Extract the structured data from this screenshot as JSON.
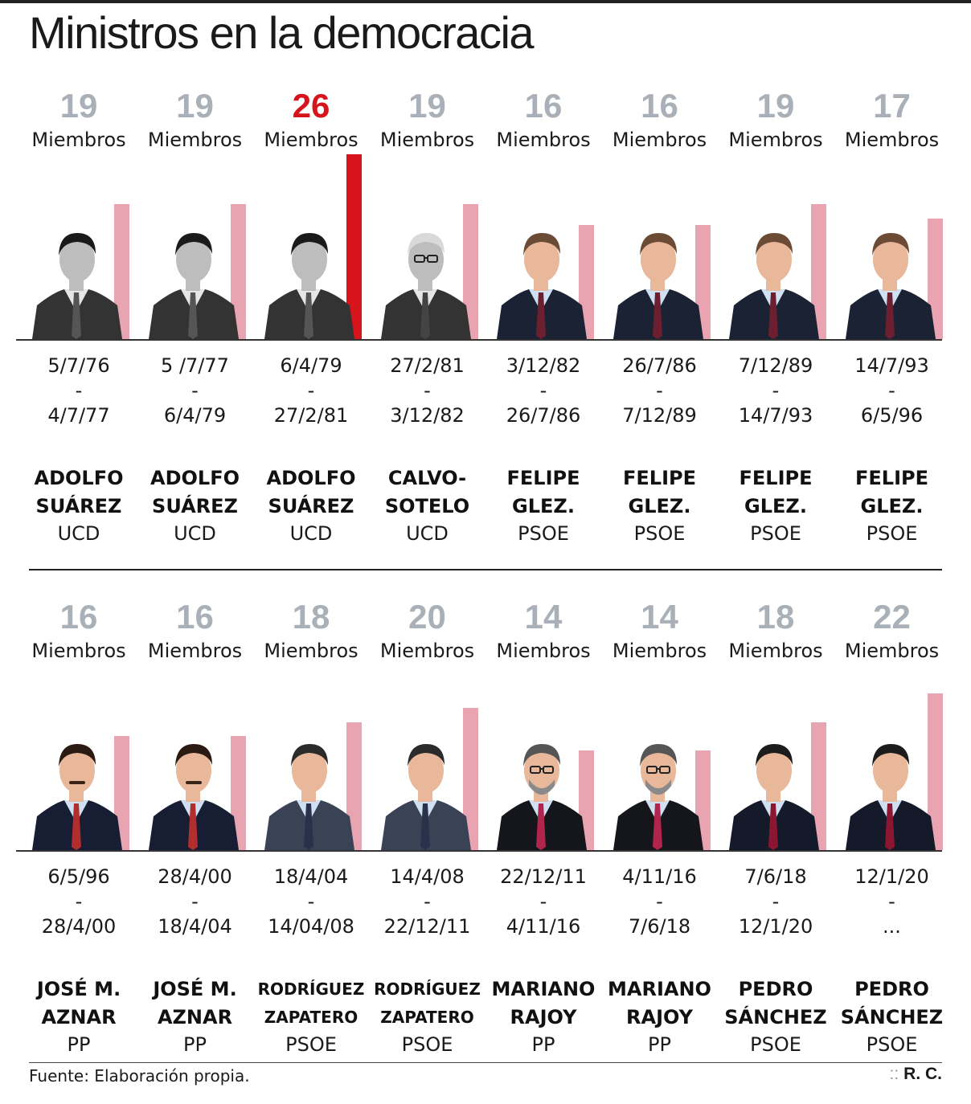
{
  "title": "Ministros en la democracia",
  "members_label": "Miembros",
  "source": "Fuente: Elaboración propia.",
  "credit": "R. C.",
  "colors": {
    "bar": "#e8a4b1",
    "bar_max": "#d7141c",
    "number": "#a9b0b8",
    "number_max": "#d7141c"
  },
  "chart_data": {
    "type": "bar",
    "categories": [
      "ADOLFO SUÁREZ",
      "ADOLFO SUÁREZ",
      "ADOLFO SUÁREZ",
      "CALVO-SOTELO",
      "FELIPE GLEZ.",
      "FELIPE GLEZ.",
      "FELIPE GLEZ.",
      "FELIPE GLEZ.",
      "JOSÉ M. AZNAR",
      "JOSÉ M. AZNAR",
      "RODRÍGUEZ ZAPATERO",
      "RODRÍGUEZ ZAPATERO",
      "MARIANO RAJOY",
      "MARIANO RAJOY",
      "PEDRO SÁNCHEZ",
      "PEDRO SÁNCHEZ"
    ],
    "values": [
      19,
      19,
      26,
      19,
      16,
      16,
      19,
      17,
      16,
      16,
      18,
      20,
      14,
      14,
      18,
      22
    ],
    "highlight_max": 26,
    "ylim": [
      0,
      26
    ],
    "ylabel": "Miembros",
    "grid": false,
    "governments": [
      {
        "members": 19,
        "start": "5/7/76",
        "sep": "-",
        "end": "4/7/77",
        "name1": "ADOLFO",
        "name2": "SUÁREZ",
        "party": "UCD",
        "portrait": "suarez-photo"
      },
      {
        "members": 19,
        "start": "5 /7/77",
        "sep": "-",
        "end": "6/4/79",
        "name1": "ADOLFO",
        "name2": "SUÁREZ",
        "party": "UCD",
        "portrait": "suarez-photo"
      },
      {
        "members": 26,
        "start": "6/4/79",
        "sep": "-",
        "end": "27/2/81",
        "name1": "ADOLFO",
        "name2": "SUÁREZ",
        "party": "UCD",
        "portrait": "suarez-photo"
      },
      {
        "members": 19,
        "start": "27/2/81",
        "sep": "-",
        "end": "3/12/82",
        "name1": "CALVO-",
        "name2": "SOTELO",
        "party": "UCD",
        "portrait": "calvo-sotelo-photo"
      },
      {
        "members": 16,
        "start": "3/12/82",
        "sep": "-",
        "end": "26/7/86",
        "name1": "FELIPE",
        "name2": "GLEZ.",
        "party": "PSOE",
        "portrait": "felipe-gonzalez-photo"
      },
      {
        "members": 16,
        "start": "26/7/86",
        "sep": "-",
        "end": "7/12/89",
        "name1": "FELIPE",
        "name2": "GLEZ.",
        "party": "PSOE",
        "portrait": "felipe-gonzalez-photo"
      },
      {
        "members": 19,
        "start": "7/12/89",
        "sep": "-",
        "end": "14/7/93",
        "name1": "FELIPE",
        "name2": "GLEZ.",
        "party": "PSOE",
        "portrait": "felipe-gonzalez-photo"
      },
      {
        "members": 17,
        "start": "14/7/93",
        "sep": "-",
        "end": "6/5/96",
        "name1": "FELIPE",
        "name2": "GLEZ.",
        "party": "PSOE",
        "portrait": "felipe-gonzalez-photo"
      },
      {
        "members": 16,
        "start": "6/5/96",
        "sep": "-",
        "end": "28/4/00",
        "name1": "JOSÉ M.",
        "name2": "AZNAR",
        "party": "PP",
        "portrait": "aznar-photo"
      },
      {
        "members": 16,
        "start": "28/4/00",
        "sep": "-",
        "end": "18/4/04",
        "name1": "JOSÉ M.",
        "name2": "AZNAR",
        "party": "PP",
        "portrait": "aznar-photo"
      },
      {
        "members": 18,
        "start": "18/4/04",
        "sep": "-",
        "end": "14/04/08",
        "name1": "RODRÍGUEZ",
        "name2": "ZAPATERO",
        "party": "PSOE",
        "portrait": "zapatero-photo"
      },
      {
        "members": 20,
        "start": "14/4/08",
        "sep": "-",
        "end": "22/12/11",
        "name1": "RODRÍGUEZ",
        "name2": "ZAPATERO",
        "party": "PSOE",
        "portrait": "zapatero-photo"
      },
      {
        "members": 14,
        "start": "22/12/11",
        "sep": "-",
        "end": "4/11/16",
        "name1": "MARIANO",
        "name2": "RAJOY",
        "party": "PP",
        "portrait": "rajoy-photo"
      },
      {
        "members": 14,
        "start": "4/11/16",
        "sep": "-",
        "end": "7/6/18",
        "name1": "MARIANO",
        "name2": "RAJOY",
        "party": "PP",
        "portrait": "rajoy-photo"
      },
      {
        "members": 18,
        "start": "7/6/18",
        "sep": "-",
        "end": "12/1/20",
        "name1": "PEDRO",
        "name2": "SÁNCHEZ",
        "party": "PSOE",
        "portrait": "sanchez-photo"
      },
      {
        "members": 22,
        "start": "12/1/20",
        "sep": "-",
        "end": "...",
        "name1": "PEDRO",
        "name2": "SÁNCHEZ",
        "party": "PSOE",
        "portrait": "sanchez-photo"
      }
    ]
  }
}
